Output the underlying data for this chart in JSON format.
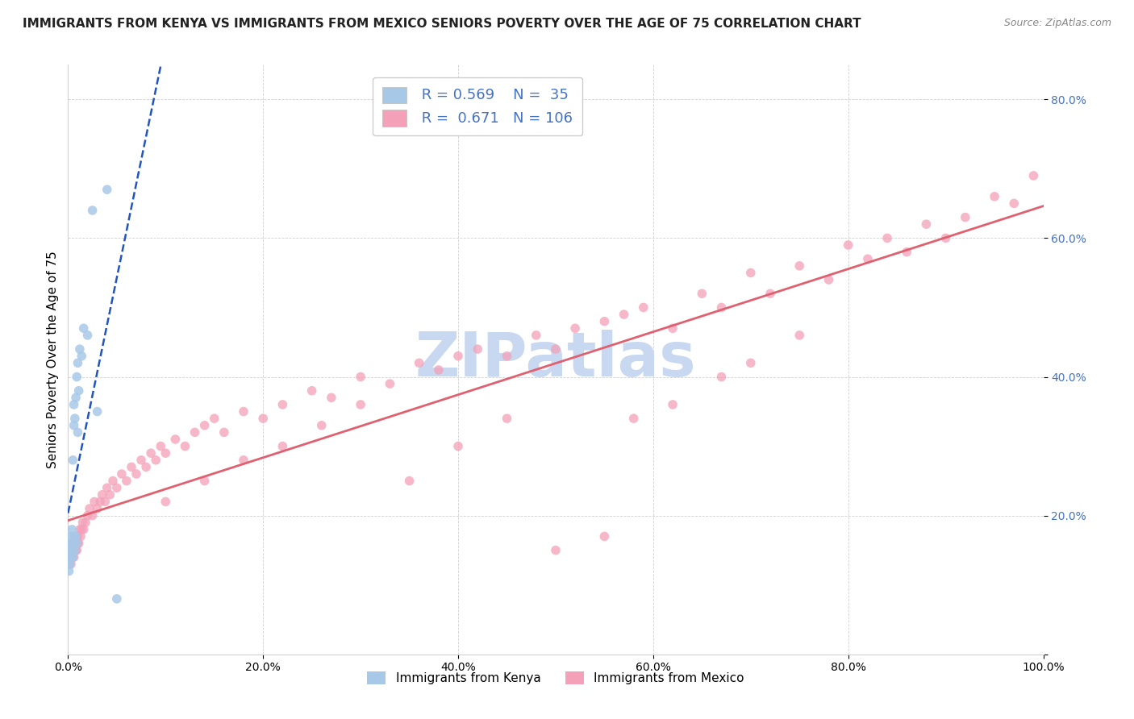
{
  "title": "IMMIGRANTS FROM KENYA VS IMMIGRANTS FROM MEXICO SENIORS POVERTY OVER THE AGE OF 75 CORRELATION CHART",
  "source_text": "Source: ZipAtlas.com",
  "ylabel": "Seniors Poverty Over the Age of 75",
  "xlim": [
    0,
    1.0
  ],
  "ylim": [
    0,
    0.85
  ],
  "kenya_R": 0.569,
  "kenya_N": 35,
  "mexico_R": 0.671,
  "mexico_N": 106,
  "kenya_color": "#a8c8e8",
  "mexico_color": "#f4a0b8",
  "kenya_line_color": "#2255bb",
  "mexico_line_color": "#e06070",
  "watermark_text": "ZIPatlas",
  "watermark_color": "#c8d8f0",
  "title_fontsize": 11,
  "axis_label_fontsize": 11,
  "tick_fontsize": 10,
  "legend_fontsize": 12,
  "kenya_x": [
    0.0005,
    0.001,
    0.001,
    0.0015,
    0.002,
    0.002,
    0.002,
    0.003,
    0.003,
    0.003,
    0.004,
    0.004,
    0.005,
    0.005,
    0.005,
    0.006,
    0.006,
    0.006,
    0.007,
    0.007,
    0.008,
    0.008,
    0.009,
    0.009,
    0.01,
    0.01,
    0.011,
    0.012,
    0.014,
    0.016,
    0.02,
    0.025,
    0.03,
    0.04,
    0.05
  ],
  "kenya_y": [
    0.13,
    0.12,
    0.14,
    0.15,
    0.13,
    0.15,
    0.16,
    0.14,
    0.16,
    0.17,
    0.15,
    0.18,
    0.14,
    0.16,
    0.28,
    0.17,
    0.33,
    0.36,
    0.15,
    0.34,
    0.17,
    0.37,
    0.16,
    0.4,
    0.32,
    0.42,
    0.38,
    0.44,
    0.43,
    0.47,
    0.46,
    0.64,
    0.35,
    0.67,
    0.08
  ],
  "mexico_x": [
    0.001,
    0.001,
    0.002,
    0.002,
    0.003,
    0.003,
    0.004,
    0.004,
    0.005,
    0.005,
    0.006,
    0.006,
    0.007,
    0.007,
    0.008,
    0.008,
    0.009,
    0.009,
    0.01,
    0.01,
    0.011,
    0.012,
    0.013,
    0.014,
    0.015,
    0.016,
    0.018,
    0.02,
    0.022,
    0.025,
    0.027,
    0.03,
    0.033,
    0.035,
    0.038,
    0.04,
    0.043,
    0.046,
    0.05,
    0.055,
    0.06,
    0.065,
    0.07,
    0.075,
    0.08,
    0.085,
    0.09,
    0.095,
    0.1,
    0.11,
    0.12,
    0.13,
    0.14,
    0.15,
    0.16,
    0.18,
    0.2,
    0.22,
    0.25,
    0.27,
    0.3,
    0.33,
    0.36,
    0.38,
    0.4,
    0.42,
    0.45,
    0.48,
    0.5,
    0.52,
    0.55,
    0.57,
    0.59,
    0.62,
    0.65,
    0.67,
    0.7,
    0.72,
    0.75,
    0.78,
    0.8,
    0.82,
    0.84,
    0.86,
    0.88,
    0.9,
    0.92,
    0.95,
    0.97,
    0.99,
    0.1,
    0.14,
    0.18,
    0.22,
    0.26,
    0.3,
    0.35,
    0.4,
    0.45,
    0.5,
    0.55,
    0.58,
    0.62,
    0.67,
    0.7,
    0.75
  ],
  "mexico_y": [
    0.14,
    0.13,
    0.14,
    0.15,
    0.13,
    0.15,
    0.14,
    0.16,
    0.14,
    0.15,
    0.16,
    0.14,
    0.15,
    0.17,
    0.15,
    0.16,
    0.17,
    0.15,
    0.16,
    0.17,
    0.16,
    0.18,
    0.17,
    0.18,
    0.19,
    0.18,
    0.19,
    0.2,
    0.21,
    0.2,
    0.22,
    0.21,
    0.22,
    0.23,
    0.22,
    0.24,
    0.23,
    0.25,
    0.24,
    0.26,
    0.25,
    0.27,
    0.26,
    0.28,
    0.27,
    0.29,
    0.28,
    0.3,
    0.29,
    0.31,
    0.3,
    0.32,
    0.33,
    0.34,
    0.32,
    0.35,
    0.34,
    0.36,
    0.38,
    0.37,
    0.4,
    0.39,
    0.42,
    0.41,
    0.43,
    0.44,
    0.43,
    0.46,
    0.44,
    0.47,
    0.48,
    0.49,
    0.5,
    0.47,
    0.52,
    0.5,
    0.55,
    0.52,
    0.56,
    0.54,
    0.59,
    0.57,
    0.6,
    0.58,
    0.62,
    0.6,
    0.63,
    0.66,
    0.65,
    0.69,
    0.22,
    0.25,
    0.28,
    0.3,
    0.33,
    0.36,
    0.25,
    0.3,
    0.34,
    0.15,
    0.17,
    0.34,
    0.36,
    0.4,
    0.42,
    0.46
  ]
}
